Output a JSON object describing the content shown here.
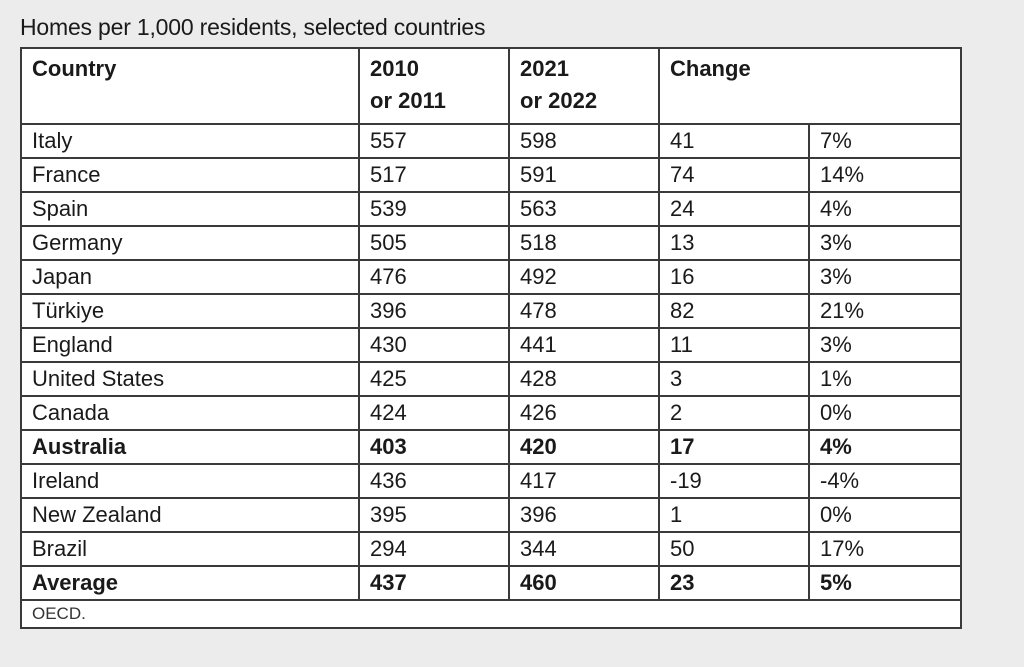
{
  "title": "Homes per 1,000 residents, selected countries",
  "headers": {
    "country": "Country",
    "y2010_line1": "2010",
    "y2010_line2": "or 2011",
    "y2021_line1": "2021",
    "y2021_line2": "or 2022",
    "change": "Change"
  },
  "rows": [
    {
      "country": "Italy",
      "v2010": "557",
      "v2021": "598",
      "change": "41",
      "pct": "7%",
      "bold": false
    },
    {
      "country": "France",
      "v2010": "517",
      "v2021": "591",
      "change": "74",
      "pct": "14%",
      "bold": false
    },
    {
      "country": "Spain",
      "v2010": "539",
      "v2021": "563",
      "change": "24",
      "pct": "4%",
      "bold": false
    },
    {
      "country": "Germany",
      "v2010": "505",
      "v2021": "518",
      "change": "13",
      "pct": "3%",
      "bold": false
    },
    {
      "country": "Japan",
      "v2010": "476",
      "v2021": "492",
      "change": "16",
      "pct": "3%",
      "bold": false
    },
    {
      "country": "Türkiye",
      "v2010": "396",
      "v2021": "478",
      "change": "82",
      "pct": "21%",
      "bold": false
    },
    {
      "country": "England",
      "v2010": "430",
      "v2021": "441",
      "change": "11",
      "pct": "3%",
      "bold": false
    },
    {
      "country": "United States",
      "v2010": "425",
      "v2021": "428",
      "change": "3",
      "pct": "1%",
      "bold": false
    },
    {
      "country": "Canada",
      "v2010": "424",
      "v2021": "426",
      "change": "2",
      "pct": "0%",
      "bold": false
    },
    {
      "country": "Australia",
      "v2010": "403",
      "v2021": "420",
      "change": "17",
      "pct": "4%",
      "bold": true
    },
    {
      "country": "Ireland",
      "v2010": "436",
      "v2021": "417",
      "change": "-19",
      "pct": "-4%",
      "bold": false
    },
    {
      "country": "New Zealand",
      "v2010": "395",
      "v2021": "396",
      "change": "1",
      "pct": "0%",
      "bold": false
    },
    {
      "country": "Brazil",
      "v2010": "294",
      "v2021": "344",
      "change": "50",
      "pct": "17%",
      "bold": false
    },
    {
      "country": "Average",
      "v2010": "437",
      "v2021": "460",
      "change": "23",
      "pct": "5%",
      "bold": true
    }
  ],
  "source": "OECD."
}
